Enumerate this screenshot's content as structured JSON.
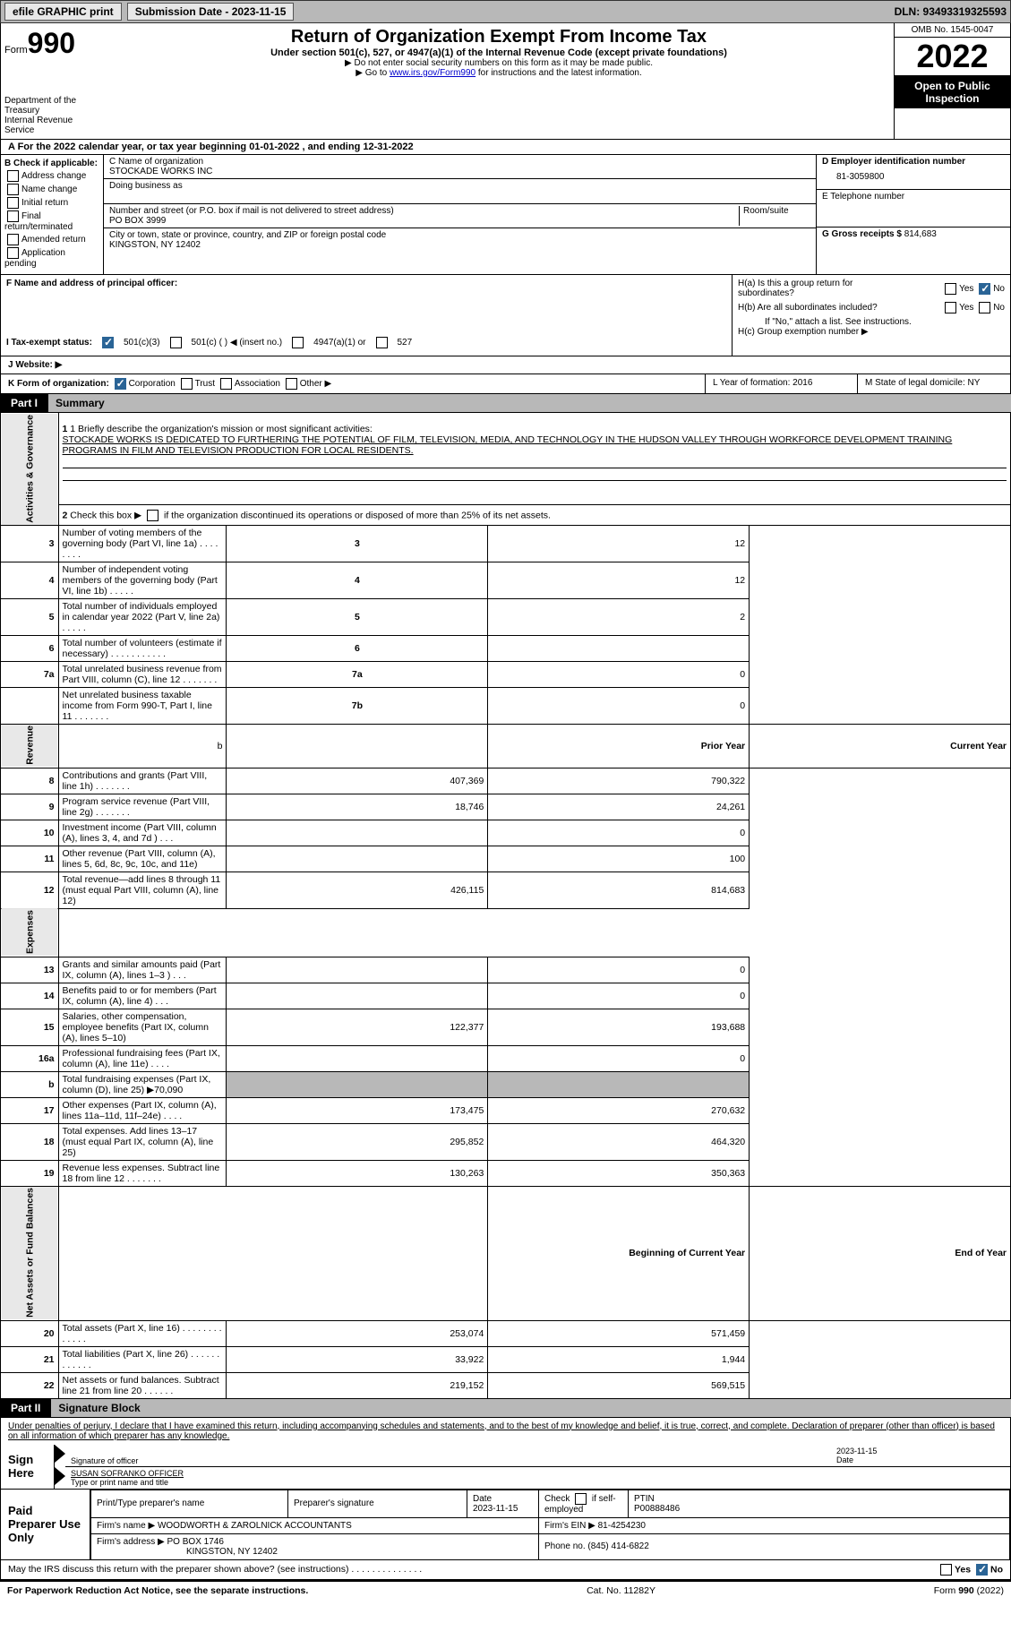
{
  "toolbar": {
    "efile": "efile GRAPHIC print",
    "submission": "Submission Date - 2023-11-15",
    "dln": "DLN: 93493319325593"
  },
  "header": {
    "form_word": "Form",
    "form_num": "990",
    "dept": "Department of the Treasury",
    "irs": "Internal Revenue Service",
    "title": "Return of Organization Exempt From Income Tax",
    "subtitle": "Under section 501(c), 527, or 4947(a)(1) of the Internal Revenue Code (except private foundations)",
    "note1": "▶ Do not enter social security numbers on this form as it may be made public.",
    "note2_pre": "▶ Go to ",
    "note2_link": "www.irs.gov/Form990",
    "note2_post": " for instructions and the latest information.",
    "omb": "OMB No. 1545-0047",
    "year": "2022",
    "open": "Open to Public Inspection"
  },
  "lineA": "A For the 2022 calendar year, or tax year beginning 01-01-2022    , and ending 12-31-2022",
  "checkB": {
    "label": "B Check if applicable:",
    "addr": "Address change",
    "name": "Name change",
    "init": "Initial return",
    "final": "Final return/terminated",
    "amend": "Amended return",
    "app": "Application pending"
  },
  "sectionC": {
    "name_label": "C Name of organization",
    "name": "STOCKADE WORKS INC",
    "dba_label": "Doing business as",
    "dba": "",
    "addr_label": "Number and street (or P.O. box if mail is not delivered to street address)",
    "room_label": "Room/suite",
    "addr": "PO BOX 3999",
    "city_label": "City or town, state or province, country, and ZIP or foreign postal code",
    "city": "KINGSTON, NY  12402"
  },
  "sectionD": {
    "ein_label": "D Employer identification number",
    "ein": "81-3059800",
    "phone_label": "E Telephone number",
    "phone": "",
    "gross_label": "G Gross receipts $",
    "gross": "814,683"
  },
  "sectionF": {
    "label": "F Name and address of principal officer:",
    "value": ""
  },
  "sectionH": {
    "ha_label": "H(a)  Is this a group return for subordinates?",
    "hb_label": "H(b)  Are all subordinates included?",
    "hb_note": "If \"No,\" attach a list. See instructions.",
    "hc_label": "H(c)  Group exemption number ▶",
    "yes": "Yes",
    "no": "No"
  },
  "taxI": {
    "label": "I   Tax-exempt status:",
    "opt1": "501(c)(3)",
    "opt2": "501(c) (  ) ◀ (insert no.)",
    "opt3": "4947(a)(1) or",
    "opt4": "527"
  },
  "lineJ": "J   Website: ▶",
  "lineK": {
    "label": "K Form of organization:",
    "corp": "Corporation",
    "trust": "Trust",
    "assoc": "Association",
    "other": "Other ▶",
    "year_label": "L Year of formation: 2016",
    "state_label": "M State of legal domicile: NY"
  },
  "part1": {
    "label": "Part I",
    "title": "Summary",
    "line1_label": "1  Briefly describe the organization's mission or most significant activities:",
    "line1_text": "STOCKADE WORKS IS DEDICATED TO FURTHERING THE POTENTIAL OF FILM, TELEVISION, MEDIA, AND TECHNOLOGY IN THE HUDSON VALLEY THROUGH WORKFORCE DEVELOPMENT TRAINING PROGRAMS IN FILM AND TELEVISION PRODUCTION FOR LOCAL RESIDENTS.",
    "line2": "2   Check this box ▶       if the organization discontinued its operations or disposed of more than 25% of its net assets.",
    "rows_gov": [
      {
        "n": "3",
        "t": "Number of voting members of the governing body (Part VI, line 1a)  .  .  .  .  .  .  .  .",
        "b": "3",
        "v": "12"
      },
      {
        "n": "4",
        "t": "Number of independent voting members of the governing body (Part VI, line 1b)  .  .  .  .  .",
        "b": "4",
        "v": "12"
      },
      {
        "n": "5",
        "t": "Total number of individuals employed in calendar year 2022 (Part V, line 2a)  .  .  .  .  .",
        "b": "5",
        "v": "2"
      },
      {
        "n": "6",
        "t": "Total number of volunteers (estimate if necessary)  .  .  .  .  .  .  .  .  .  .  .",
        "b": "6",
        "v": ""
      },
      {
        "n": "7a",
        "t": "Total unrelated business revenue from Part VIII, column (C), line 12  .  .  .  .  .  .  .",
        "b": "7a",
        "v": "0"
      },
      {
        "n": "",
        "t": "Net unrelated business taxable income from Form 990-T, Part I, line 11  .  .  .  .  .  .  .",
        "b": "7b",
        "v": "0"
      }
    ],
    "col_prior": "Prior Year",
    "col_current": "Current Year",
    "rows_rev": [
      {
        "n": "8",
        "t": "Contributions and grants (Part VIII, line 1h)  .  .  .  .  .  .  .",
        "p": "407,369",
        "c": "790,322"
      },
      {
        "n": "9",
        "t": "Program service revenue (Part VIII, line 2g)  .  .  .  .  .  .  .",
        "p": "18,746",
        "c": "24,261"
      },
      {
        "n": "10",
        "t": "Investment income (Part VIII, column (A), lines 3, 4, and 7d )  .  .  .",
        "p": "",
        "c": "0"
      },
      {
        "n": "11",
        "t": "Other revenue (Part VIII, column (A), lines 5, 6d, 8c, 9c, 10c, and 11e)",
        "p": "",
        "c": "100"
      },
      {
        "n": "12",
        "t": "Total revenue—add lines 8 through 11 (must equal Part VIII, column (A), line 12)",
        "p": "426,115",
        "c": "814,683"
      }
    ],
    "rows_exp": [
      {
        "n": "13",
        "t": "Grants and similar amounts paid (Part IX, column (A), lines 1–3 )  .  .  .",
        "p": "",
        "c": "0"
      },
      {
        "n": "14",
        "t": "Benefits paid to or for members (Part IX, column (A), line 4)  .  .  .",
        "p": "",
        "c": "0"
      },
      {
        "n": "15",
        "t": "Salaries, other compensation, employee benefits (Part IX, column (A), lines 5–10)",
        "p": "122,377",
        "c": "193,688"
      },
      {
        "n": "16a",
        "t": "Professional fundraising fees (Part IX, column (A), line 11e)  .  .  .  .",
        "p": "",
        "c": "0"
      },
      {
        "n": "b",
        "t": "Total fundraising expenses (Part IX, column (D), line 25) ▶70,090",
        "p": "SHADE",
        "c": "SHADE"
      },
      {
        "n": "17",
        "t": "Other expenses (Part IX, column (A), lines 11a–11d, 11f–24e)  .  .  .  .",
        "p": "173,475",
        "c": "270,632"
      },
      {
        "n": "18",
        "t": "Total expenses. Add lines 13–17 (must equal Part IX, column (A), line 25)",
        "p": "295,852",
        "c": "464,320"
      },
      {
        "n": "19",
        "t": "Revenue less expenses. Subtract line 18 from line 12  .  .  .  .  .  .  .",
        "p": "130,263",
        "c": "350,363"
      }
    ],
    "col_begin": "Beginning of Current Year",
    "col_end": "End of Year",
    "rows_net": [
      {
        "n": "20",
        "t": "Total assets (Part X, line 16)  .  .  .  .  .  .  .  .  .  .  .  .  .",
        "p": "253,074",
        "c": "571,459"
      },
      {
        "n": "21",
        "t": "Total liabilities (Part X, line 26)  .  .  .  .  .  .  .  .  .  .  .  .",
        "p": "33,922",
        "c": "1,944"
      },
      {
        "n": "22",
        "t": "Net assets or fund balances. Subtract line 21 from line 20  .  .  .  .  .  .",
        "p": "219,152",
        "c": "569,515"
      }
    ],
    "tab_gov": "Activities & Governance",
    "tab_rev": "Revenue",
    "tab_exp": "Expenses",
    "tab_net": "Net Assets or Fund Balances",
    "b_label": "b"
  },
  "part2": {
    "label": "Part II",
    "title": "Signature Block",
    "declare": "Under penalties of perjury, I declare that I have examined this return, including accompanying schedules and statements, and to the best of my knowledge and belief, it is true, correct, and complete. Declaration of preparer (other than officer) is based on all information of which preparer has any knowledge.",
    "sign_here": "Sign Here",
    "sig_officer": "Signature of officer",
    "sig_date": "Date",
    "sig_date_val": "2023-11-15",
    "officer_name": "SUSAN SOFRANKO OFFICER",
    "type_name": "Type or print name and title",
    "paid_prep": "Paid Preparer Use Only",
    "prep_name_label": "Print/Type preparer's name",
    "prep_sig_label": "Preparer's signature",
    "date_label": "Date",
    "date_val": "2023-11-15",
    "check_if": "Check         if self-employed",
    "ptin_label": "PTIN",
    "ptin": "P00888486",
    "firm_name_label": "Firm's name      ▶",
    "firm_name": "WOODWORTH & ZAROLNICK ACCOUNTANTS",
    "firm_ein_label": "Firm's EIN ▶",
    "firm_ein": "81-4254230",
    "firm_addr_label": "Firm's address ▶",
    "firm_addr1": "PO BOX 1746",
    "firm_addr2": "KINGSTON, NY  12402",
    "phone_label": "Phone no.",
    "phone": "(845) 414-6822",
    "discuss": "May the IRS discuss this return with the preparer shown above? (see instructions)  .  .  .  .  .  .  .  .  .  .  .  .  .  .",
    "yes": "Yes",
    "no": "No"
  },
  "footer": {
    "left": "For Paperwork Reduction Act Notice, see the separate instructions.",
    "mid": "Cat. No. 11282Y",
    "right": "Form 990 (2022)"
  }
}
